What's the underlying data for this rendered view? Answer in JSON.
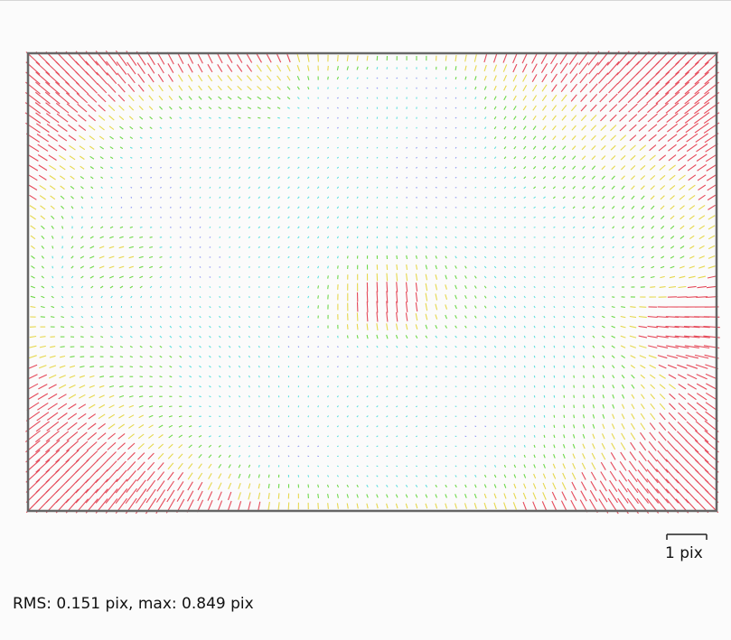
{
  "chart_data": {
    "type": "vector-field",
    "scale_bar": {
      "length_pix": 1,
      "label": "1 pix"
    },
    "rms_pix": 0.151,
    "max_pix": 0.849,
    "colors": {
      "frame": "#666666",
      "low": "#8f9cf5",
      "mid_low": "#5fe0e0",
      "mid": "#6fd94a",
      "mid_high": "#e6d84e",
      "high": "#e54a5a"
    },
    "color_thresholds_pix": [
      0.05,
      0.12,
      0.22,
      0.38
    ]
  },
  "stats": {
    "rms_label": "RMS: ",
    "rms_value": "0.151",
    "max_label": " pix, max: ",
    "max_value": "0.849",
    "unit": " pix"
  }
}
